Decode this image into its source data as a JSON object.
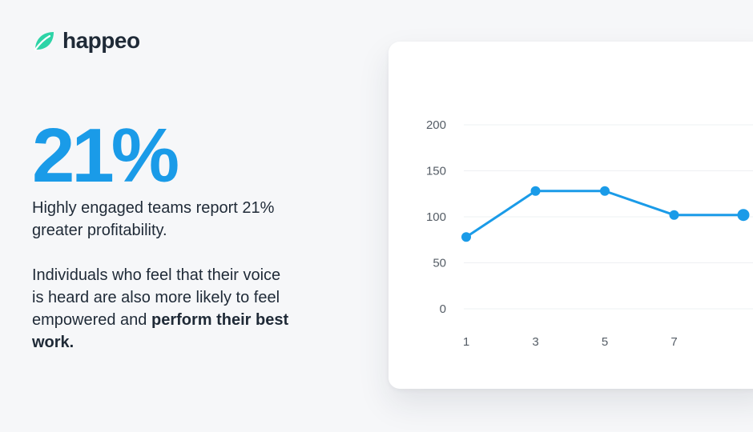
{
  "brand": {
    "name": "happeo",
    "accent_color": "#1a9be8",
    "logo_color": "#2dd4a7",
    "icon": "leaf-logo-icon"
  },
  "headline": {
    "stat": "21%"
  },
  "copy": {
    "line1": "Highly engaged teams report 21% greater profitability.",
    "line2_regular": "Individuals who feel that their voice is heard are also more likely to feel empowered and ",
    "line2_bold": "perform their best work."
  },
  "chart_data": {
    "type": "line",
    "x": [
      1,
      3,
      5,
      7,
      9
    ],
    "x_tick_labels": [
      "1",
      "3",
      "5",
      "7"
    ],
    "y_tick_labels": [
      "200",
      "150",
      "100",
      "50",
      "0"
    ],
    "ylim": [
      0,
      200
    ],
    "grid": true,
    "series": [
      {
        "values": [
          78,
          128,
          128,
          102,
          102
        ],
        "color": "#1a9be8"
      }
    ]
  }
}
